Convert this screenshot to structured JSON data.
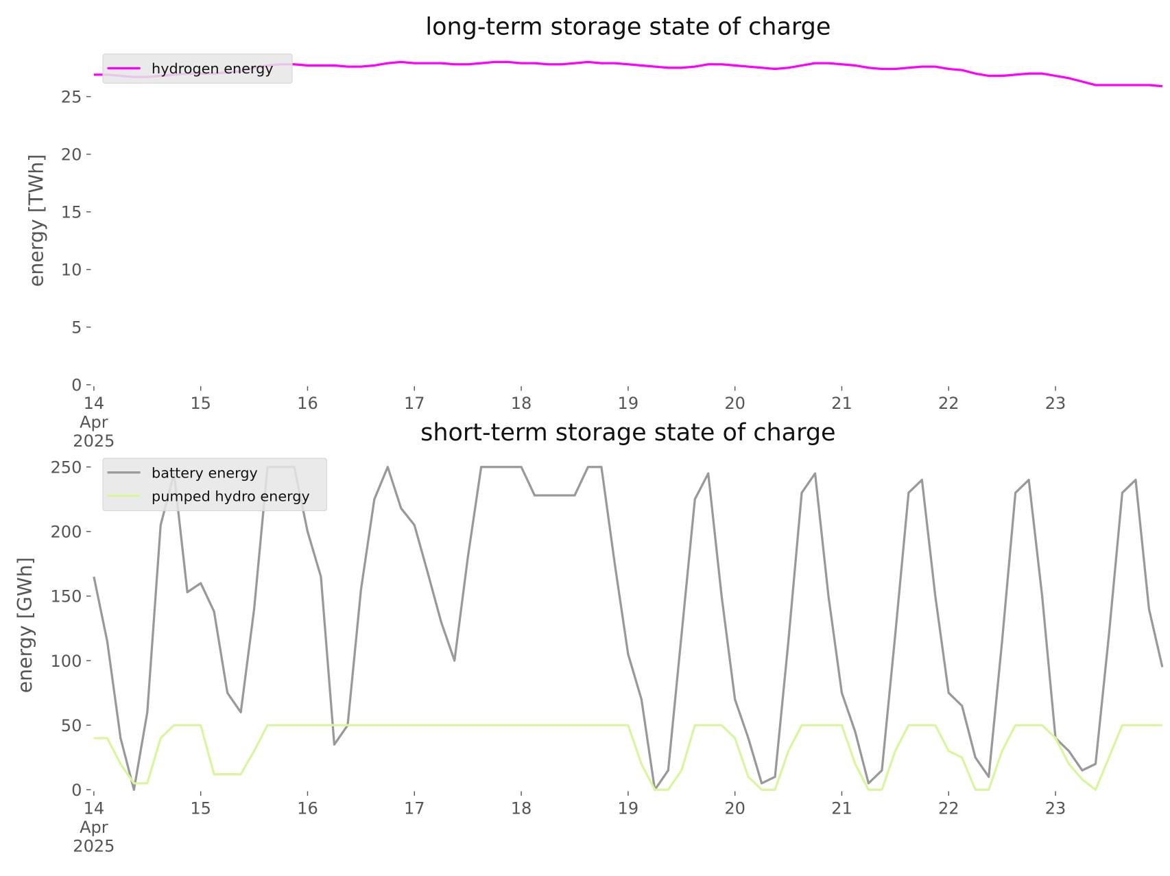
{
  "chart_data": [
    {
      "type": "line",
      "title": "long-term storage state of charge",
      "ylabel": "energy [TWh]",
      "x": [
        14,
        14.125,
        14.25,
        14.375,
        14.5,
        14.625,
        14.75,
        14.875,
        15,
        15.125,
        15.25,
        15.375,
        15.5,
        15.625,
        15.75,
        15.875,
        16,
        16.125,
        16.25,
        16.375,
        16.5,
        16.625,
        16.75,
        16.875,
        17,
        17.125,
        17.25,
        17.375,
        17.5,
        17.625,
        17.75,
        17.875,
        18,
        18.125,
        18.25,
        18.375,
        18.5,
        18.625,
        18.75,
        18.875,
        19,
        19.125,
        19.25,
        19.375,
        19.5,
        19.625,
        19.75,
        19.875,
        20,
        20.125,
        20.25,
        20.375,
        20.5,
        20.625,
        20.75,
        20.875,
        21,
        21.125,
        21.25,
        21.375,
        21.5,
        21.625,
        21.75,
        21.875,
        22,
        22.125,
        22.25,
        22.375,
        22.5,
        22.625,
        22.75,
        22.875,
        23,
        23.125,
        23.25,
        23.375,
        23.5,
        23.625,
        23.75,
        23.875,
        24
      ],
      "xlim": [
        14,
        24
      ],
      "xticks": [
        {
          "value": 14,
          "label": "14\nApr\n2025"
        },
        15,
        16,
        17,
        18,
        19,
        20,
        21,
        22,
        23
      ],
      "ylim": [
        0,
        28.5
      ],
      "yticks": [
        0,
        5,
        10,
        15,
        20,
        25
      ],
      "legend": "upper left",
      "series": [
        {
          "name": "hydrogen energy",
          "color": "#ff00ff",
          "values": [
            26.9,
            26.9,
            26.8,
            26.7,
            26.7,
            26.8,
            26.9,
            27.0,
            27.0,
            27.0,
            27.1,
            27.2,
            27.5,
            27.7,
            27.8,
            27.8,
            27.7,
            27.7,
            27.7,
            27.6,
            27.6,
            27.7,
            27.9,
            28.0,
            27.9,
            27.9,
            27.9,
            27.8,
            27.8,
            27.9,
            28.0,
            28.0,
            27.9,
            27.9,
            27.8,
            27.8,
            27.9,
            28.0,
            27.9,
            27.9,
            27.8,
            27.7,
            27.6,
            27.5,
            27.5,
            27.6,
            27.8,
            27.8,
            27.7,
            27.6,
            27.5,
            27.4,
            27.5,
            27.7,
            27.9,
            27.9,
            27.8,
            27.7,
            27.5,
            27.4,
            27.4,
            27.5,
            27.6,
            27.6,
            27.4,
            27.3,
            27.0,
            26.8,
            26.8,
            26.9,
            27.0,
            27.0,
            26.8,
            26.6,
            26.3,
            26.0,
            26.0,
            26.0,
            26.0,
            26.0,
            25.9
          ]
        }
      ]
    },
    {
      "type": "line",
      "title": "short-term storage state of charge",
      "ylabel": "energy [GWh]",
      "x": [
        14,
        14.125,
        14.25,
        14.375,
        14.5,
        14.625,
        14.75,
        14.875,
        15,
        15.125,
        15.25,
        15.375,
        15.5,
        15.625,
        15.75,
        15.875,
        16,
        16.125,
        16.25,
        16.375,
        16.5,
        16.625,
        16.75,
        16.875,
        17,
        17.125,
        17.25,
        17.375,
        17.5,
        17.625,
        17.75,
        17.875,
        18,
        18.125,
        18.25,
        18.375,
        18.5,
        18.625,
        18.75,
        18.875,
        19,
        19.125,
        19.25,
        19.375,
        19.5,
        19.625,
        19.75,
        19.875,
        20,
        20.125,
        20.25,
        20.375,
        20.5,
        20.625,
        20.75,
        20.875,
        21,
        21.125,
        21.25,
        21.375,
        21.5,
        21.625,
        21.75,
        21.875,
        22,
        22.125,
        22.25,
        22.375,
        22.5,
        22.625,
        22.75,
        22.875,
        23,
        23.125,
        23.25,
        23.375,
        23.5,
        23.625,
        23.75,
        23.875,
        24
      ],
      "xlim": [
        14,
        24
      ],
      "xticks": [
        {
          "value": 14,
          "label": "14\nApr\n2025"
        },
        15,
        16,
        17,
        18,
        19,
        20,
        21,
        22,
        23
      ],
      "ylim": [
        0,
        255
      ],
      "yticks": [
        0,
        50,
        100,
        150,
        200,
        250
      ],
      "legend": "upper left",
      "series": [
        {
          "name": "battery energy",
          "color": "#999999",
          "values": [
            165,
            115,
            40,
            0,
            60,
            205,
            245,
            153,
            160,
            138,
            75,
            60,
            140,
            250,
            250,
            250,
            200,
            165,
            35,
            50,
            155,
            225,
            250,
            218,
            205,
            168,
            130,
            100,
            180,
            250,
            250,
            250,
            250,
            228,
            228,
            228,
            228,
            250,
            250,
            175,
            105,
            70,
            0,
            15,
            120,
            225,
            245,
            150,
            70,
            40,
            5,
            10,
            115,
            230,
            245,
            150,
            75,
            45,
            5,
            15,
            120,
            230,
            240,
            150,
            75,
            65,
            25,
            10,
            115,
            230,
            240,
            150,
            40,
            30,
            15,
            20,
            120,
            230,
            240,
            140,
            95
          ]
        },
        {
          "name": "pumped hydro energy",
          "color": "#d9f5a0",
          "values": [
            40,
            40,
            20,
            5,
            5,
            40,
            50,
            50,
            50,
            12,
            12,
            12,
            30,
            50,
            50,
            50,
            50,
            50,
            50,
            50,
            50,
            50,
            50,
            50,
            50,
            50,
            50,
            50,
            50,
            50,
            50,
            50,
            50,
            50,
            50,
            50,
            50,
            50,
            50,
            50,
            50,
            20,
            0,
            0,
            15,
            50,
            50,
            50,
            40,
            10,
            0,
            0,
            30,
            50,
            50,
            50,
            50,
            20,
            0,
            0,
            30,
            50,
            50,
            50,
            30,
            25,
            0,
            0,
            30,
            50,
            50,
            50,
            40,
            20,
            8,
            0,
            25,
            50,
            50,
            50,
            50
          ]
        }
      ]
    }
  ]
}
